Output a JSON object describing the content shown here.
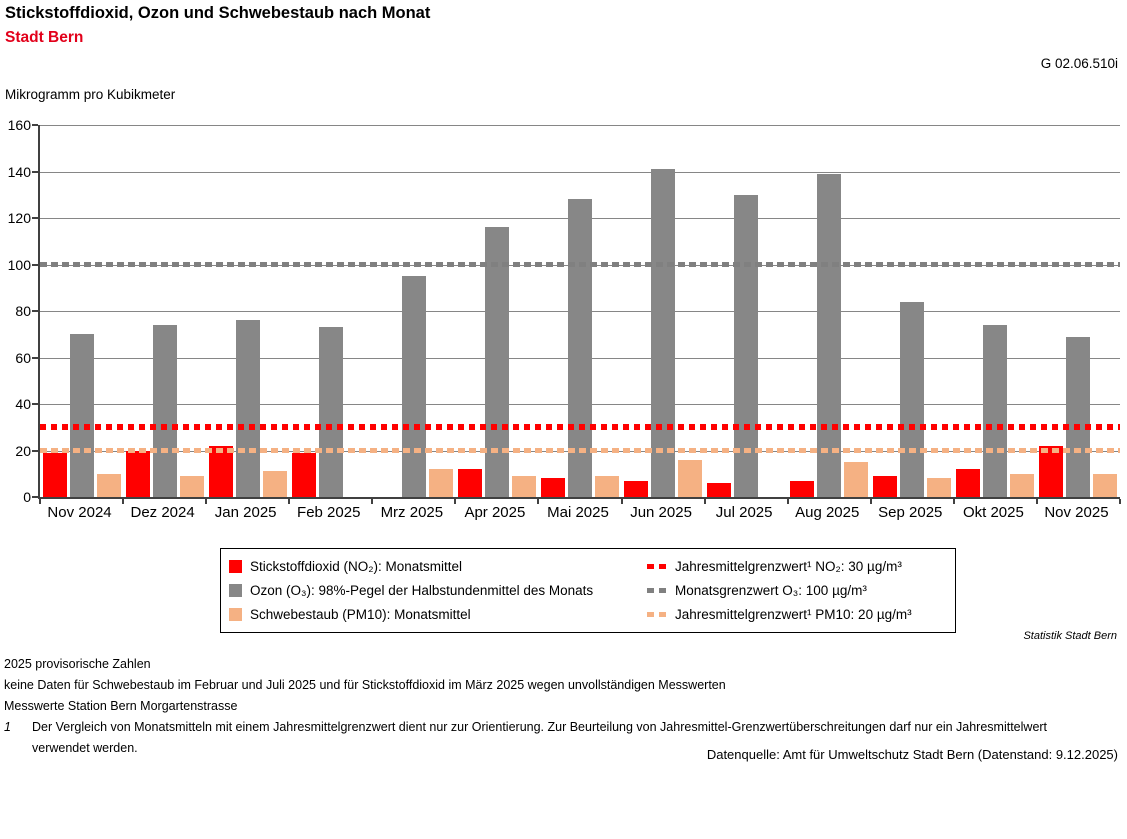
{
  "header": {
    "title": "Stickstoffdioxid, Ozon und Schwebestaub nach Monat",
    "subtitle": "Stadt Bern",
    "graph_id": "G 02.06.510i",
    "unit_label": "Mikrogramm pro Kubikmeter"
  },
  "chart_data": {
    "type": "bar",
    "title": "Stickstoffdioxid, Ozon und Schwebestaub nach Monat",
    "subtitle": "Stadt Bern",
    "ylabel": "Mikrogramm pro Kubikmeter",
    "categories": [
      "Nov 2024",
      "Dez 2024",
      "Jan 2025",
      "Feb 2025",
      "Mrz 2025",
      "Apr 2025",
      "Mai 2025",
      "Jun 2025",
      "Jul 2025",
      "Aug 2025",
      "Sep 2025",
      "Okt 2025",
      "Nov 2025"
    ],
    "series": [
      {
        "key": "no2",
        "name": "Stickstoffdioxid (NO₂): Monatsmittel",
        "color": "#ff0000",
        "values": [
          19,
          20,
          22,
          19,
          null,
          12,
          8,
          7,
          6,
          7,
          9,
          12,
          22
        ]
      },
      {
        "key": "o3",
        "name": "Ozon (O₃): 98%-Pegel der Halbstundenmittel des Monats",
        "color": "#878787",
        "values": [
          70,
          74,
          76,
          73,
          95,
          116,
          128,
          141,
          130,
          139,
          84,
          74,
          69
        ]
      },
      {
        "key": "pm10",
        "name": "Schwebestaub (PM10): Monatsmittel",
        "color": "#f5b183",
        "values": [
          10,
          9,
          11,
          null,
          12,
          9,
          9,
          16,
          null,
          15,
          8,
          10,
          10
        ]
      }
    ],
    "reference_lines": [
      {
        "key": "no2",
        "name": "Jahresmittelgrenzwert¹ NO₂: 30 µg/m³",
        "value": 30,
        "color": "#ff0000",
        "style": "dotted"
      },
      {
        "key": "o3",
        "name": "Monatsgrenzwert O₃: 100 µg/m³",
        "value": 100,
        "color": "#808080",
        "style": "dashed"
      },
      {
        "key": "pm10",
        "name": "Jahresmittelgrenzwert¹ PM10: 20 µg/m³",
        "value": 20,
        "color": "#f5b183",
        "style": "dashed"
      }
    ],
    "ylim": [
      0,
      160
    ],
    "ytick_step": 20,
    "grid": true,
    "legend_position": "bottom"
  },
  "colors": {
    "subtitle_red": "#e2001a",
    "bar_no2": "#ff0000",
    "bar_o3": "#878787",
    "bar_pm10": "#f5b183",
    "gridline": "#868686",
    "axis": "#404040"
  },
  "footer": {
    "statistik": "Statistik Stadt Bern",
    "note1": "2025 provisorische Zahlen",
    "note2": "keine Daten für Schwebestaub im Februar und Juli 2025 und für Stickstoffdioxid im März 2025 wegen unvollständigen Messwerten",
    "note3": "Messwerte Station Bern Morgartenstrasse",
    "footnote_marker": "1",
    "footnote_text": "Der Vergleich von Monatsmitteln mit einem Jahresmittelgrenzwert dient nur zur Orientierung. Zur Beurteilung von Jahresmittel-Grenzwertüberschreitungen darf nur ein Jahresmittelwert verwendet werden.",
    "source": "Datenquelle: Amt für Umweltschutz Stadt Bern (Datenstand: 9.12.2025)"
  }
}
